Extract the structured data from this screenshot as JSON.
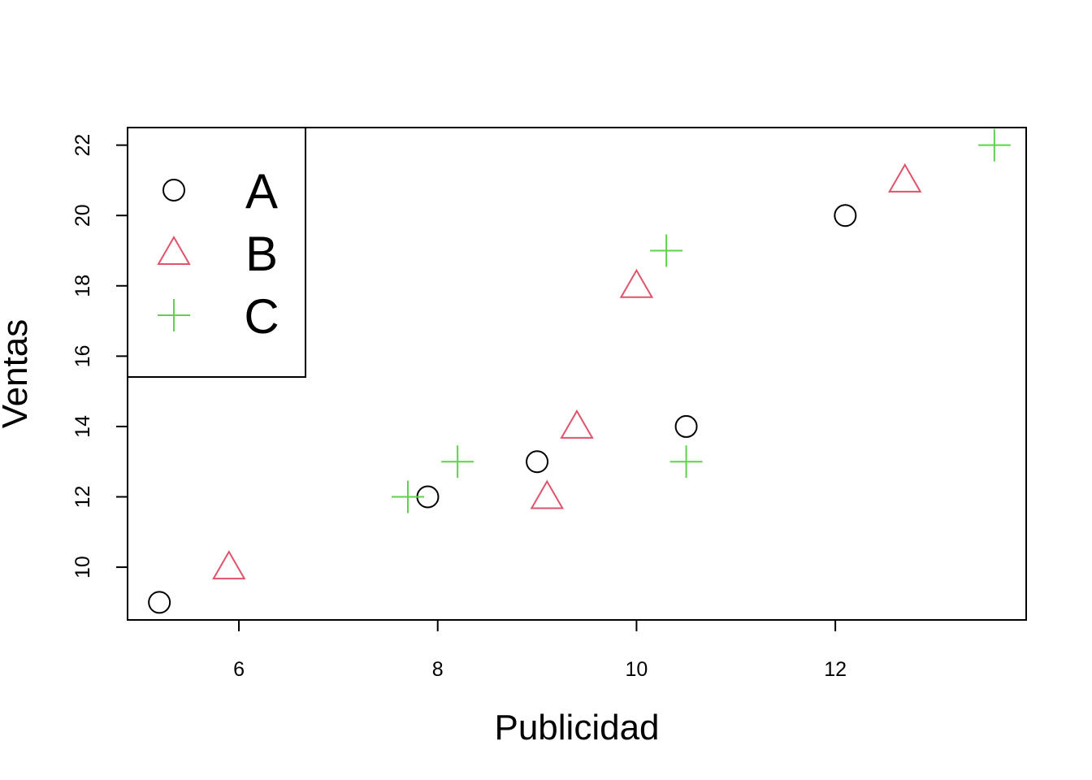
{
  "chart_data": {
    "type": "scatter",
    "title": "",
    "xlabel": "Publicidad",
    "ylabel": "Ventas",
    "xlim": [
      4.88,
      13.92
    ],
    "ylim": [
      8.5,
      22.5
    ],
    "xticks": [
      6,
      8,
      10,
      12
    ],
    "yticks": [
      10,
      12,
      14,
      16,
      18,
      20,
      22
    ],
    "grid": false,
    "legend_position": "top-left",
    "series": [
      {
        "name": "A",
        "marker": "circle",
        "color": "#000000",
        "x": [
          5.2,
          7.9,
          9.0,
          10.5,
          12.1
        ],
        "y": [
          9,
          12,
          13,
          14,
          20
        ]
      },
      {
        "name": "B",
        "marker": "triangle",
        "color": "#DF536B",
        "x": [
          5.9,
          9.1,
          9.4,
          10.0,
          12.7
        ],
        "y": [
          10,
          12,
          14,
          18,
          21
        ]
      },
      {
        "name": "C",
        "marker": "plus",
        "color": "#61D04F",
        "x": [
          7.7,
          8.2,
          10.3,
          10.5,
          13.6
        ],
        "y": [
          12,
          13,
          19,
          13,
          22
        ]
      }
    ]
  }
}
